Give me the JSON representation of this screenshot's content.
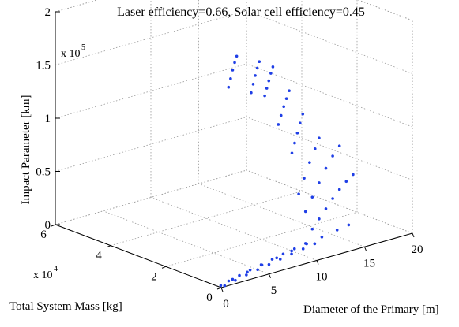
{
  "chart_data": {
    "type": "scatter",
    "title": "Laser efficiency=0.66, Solar cell efficiency=0.45",
    "xlabel": "Diameter of the Primary [m]",
    "ylabel": "Total System Mass [kg]",
    "zlabel": "Impact Parameter [km]",
    "x_ticks": [
      "0",
      "5",
      "10",
      "15",
      "20"
    ],
    "y_ticks": [
      "0",
      "2",
      "4",
      "6"
    ],
    "z_ticks": [
      "0",
      "0.5",
      "1",
      "1.5",
      "2"
    ],
    "y_multiplier": "x 10",
    "y_multiplier_exp": "4",
    "z_multiplier": "x 10",
    "z_multiplier_exp": "5",
    "xlim": [
      0,
      20
    ],
    "ylim": [
      0,
      60000
    ],
    "zlim": [
      0,
      200000
    ],
    "grid": true,
    "marker_color": "#1f3fe6",
    "series": [
      {
        "points": [
          [
            0.3,
            1200,
            0
          ],
          [
            1.5,
            2500,
            0
          ],
          [
            3.0,
            3800,
            0
          ],
          [
            4.5,
            5100,
            0
          ],
          [
            6.0,
            6300,
            0
          ],
          [
            7.5,
            7500,
            0
          ],
          [
            9.0,
            8700,
            0
          ],
          [
            10.5,
            9800,
            0
          ],
          [
            12.0,
            11000,
            0
          ]
        ]
      },
      {
        "points": [
          [
            0.5,
            500,
            0
          ],
          [
            2.0,
            1800,
            0
          ],
          [
            3.5,
            3000,
            0
          ],
          [
            5.0,
            4100,
            0
          ],
          [
            6.5,
            5200,
            0
          ],
          [
            8.0,
            6300,
            0
          ],
          [
            9.5,
            7400,
            0
          ],
          [
            11.0,
            8400,
            0
          ],
          [
            12.5,
            9400,
            0
          ]
        ]
      },
      {
        "points": [
          [
            2.0,
            2800,
            0
          ],
          [
            4.0,
            4400,
            0
          ],
          [
            6.0,
            6000,
            0
          ],
          [
            8.0,
            7600,
            0
          ],
          [
            10.0,
            9100,
            0
          ],
          [
            12.0,
            10600,
            0
          ],
          [
            14.0,
            12000,
            0
          ],
          [
            16.0,
            13400,
            0
          ],
          [
            17.5,
            14400,
            0
          ]
        ]
      },
      {
        "points": [
          [
            13.0,
            12000,
            10000
          ],
          [
            14.0,
            13000,
            16000
          ],
          [
            15.0,
            14000,
            22000
          ],
          [
            16.0,
            15000,
            28000
          ],
          [
            17.0,
            16000,
            33000
          ],
          [
            18.0,
            17000,
            37000
          ],
          [
            19.0,
            18000,
            40000
          ]
        ]
      },
      {
        "points": [
          [
            12.0,
            11000,
            30000
          ],
          [
            13.0,
            12000,
            40000
          ],
          [
            14.0,
            13000,
            50000
          ],
          [
            15.0,
            14000,
            60000
          ],
          [
            16.0,
            15000,
            68000
          ],
          [
            17.0,
            16000,
            74000
          ]
        ]
      },
      {
        "points": [
          [
            11.0,
            10000,
            50000
          ],
          [
            11.8,
            10800,
            62000
          ],
          [
            12.6,
            11600,
            74000
          ],
          [
            13.4,
            12400,
            84000
          ],
          [
            14.0,
            13000,
            92000
          ]
        ]
      },
      {
        "points": [
          [
            10.0,
            9000,
            92000
          ],
          [
            10.4,
            9400,
            100000
          ],
          [
            10.8,
            9800,
            108000
          ],
          [
            11.2,
            10200,
            116000
          ],
          [
            11.6,
            10600,
            123000
          ]
        ]
      },
      {
        "points": [
          [
            8.0,
            7000,
            126000
          ],
          [
            8.4,
            7400,
            133000
          ],
          [
            8.8,
            7800,
            140000
          ],
          [
            9.2,
            8200,
            146000
          ],
          [
            9.6,
            8600,
            152000
          ]
        ]
      },
      {
        "points": [
          [
            6.0,
            5000,
            160000
          ],
          [
            6.3,
            5300,
            166000
          ],
          [
            6.6,
            5600,
            172000
          ],
          [
            6.9,
            5900,
            178000
          ],
          [
            7.2,
            6200,
            183000
          ]
        ]
      },
      {
        "points": [
          [
            4.0,
            3000,
            170000
          ],
          [
            4.3,
            3300,
            177000
          ],
          [
            4.6,
            3600,
            184000
          ],
          [
            4.9,
            3900,
            190000
          ],
          [
            5.2,
            4200,
            195000
          ]
        ]
      },
      {
        "points": [
          [
            1.0,
            800,
            185000
          ],
          [
            1.3,
            1100,
            192000
          ],
          [
            1.6,
            1400,
            199000
          ],
          [
            1.9,
            1700,
            205000
          ],
          [
            2.2,
            2000,
            210000
          ]
        ]
      }
    ]
  }
}
